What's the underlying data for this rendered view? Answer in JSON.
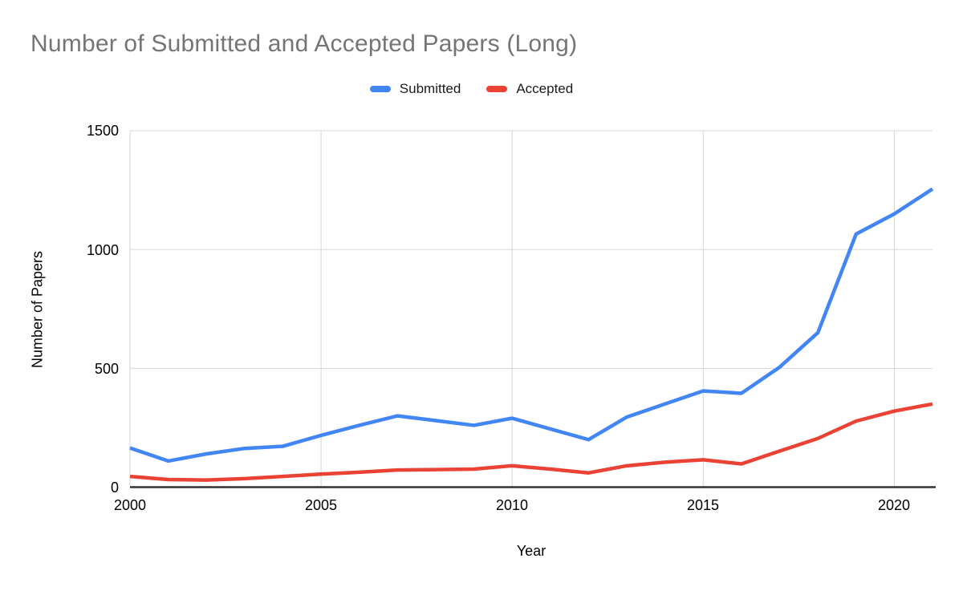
{
  "title": "Number of Submitted and Accepted Papers (Long)",
  "legend": {
    "items": [
      {
        "label": "Submitted",
        "color": "#4285F4"
      },
      {
        "label": "Accepted",
        "color": "#EA4335"
      }
    ]
  },
  "axes": {
    "xlabel": "Year",
    "ylabel": "Number of Papers",
    "y_tick_labels": [
      "1500",
      "1000",
      "500",
      "0"
    ],
    "x_tick_labels": [
      "2000",
      "2005",
      "2010",
      "2015",
      "2020"
    ]
  },
  "colors": {
    "title_text": "#757575",
    "axis_text": "#000000",
    "gridline": "#d6d6d6",
    "baseline": "#333333",
    "background": "#ffffff"
  },
  "chart_data": {
    "type": "line",
    "title": "Number of Submitted and Accepted Papers (Long)",
    "xlabel": "Year",
    "ylabel": "Number of Papers",
    "x": [
      2000,
      2001,
      2002,
      2003,
      2004,
      2005,
      2006,
      2007,
      2008,
      2009,
      2010,
      2011,
      2012,
      2013,
      2014,
      2015,
      2016,
      2017,
      2018,
      2019,
      2020,
      2021
    ],
    "series": [
      {
        "name": "Submitted",
        "color": "#4285F4",
        "values": [
          165,
          110,
          140,
          163,
          172,
          218,
          260,
          300,
          280,
          260,
          290,
          245,
          200,
          295,
          350,
          405,
          395,
          505,
          650,
          1065,
          1150,
          1255
        ]
      },
      {
        "name": "Accepted",
        "color": "#EA4335",
        "values": [
          45,
          32,
          30,
          36,
          45,
          55,
          63,
          72,
          74,
          76,
          90,
          76,
          60,
          90,
          105,
          115,
          98,
          152,
          205,
          278,
          320,
          350
        ]
      }
    ],
    "xlim": [
      2000,
      2021
    ],
    "ylim": [
      0,
      1500
    ],
    "xticks": [
      2000,
      2005,
      2010,
      2015,
      2020
    ],
    "yticks": [
      0,
      500,
      1000,
      1500
    ],
    "grid": true,
    "legend_position": "top"
  }
}
